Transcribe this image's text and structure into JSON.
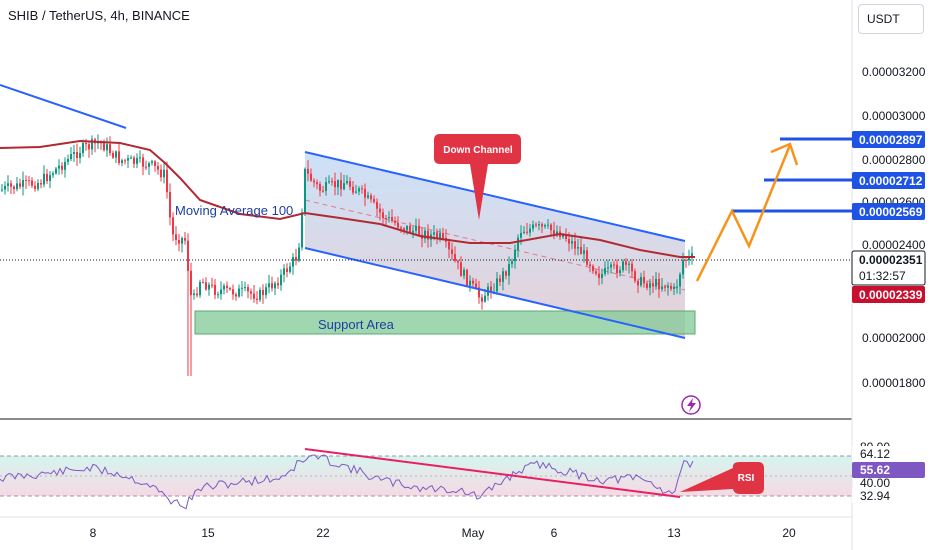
{
  "header": {
    "symbol_title": "SHIB / TetherUS, 4h, BINANCE",
    "currency_button": "USDT"
  },
  "price_axis": {
    "ticks": [
      "0.00003200",
      "0.00003000",
      "0.00002800",
      "0.00002600",
      "0.00002400",
      "0.00002000",
      "0.00001800"
    ],
    "tags": [
      {
        "text": "0.00002897",
        "bg": "#1e53e5",
        "fg": "#ffffff"
      },
      {
        "text": "0.00002712",
        "bg": "#1e53e5",
        "fg": "#ffffff"
      },
      {
        "text": "0.00002569",
        "bg": "#1e53e5",
        "fg": "#ffffff"
      },
      {
        "text": "0.00002351",
        "bg": "#ffffff",
        "fg": "#131722"
      },
      {
        "text": "01:32:57",
        "bg": "#ffffff",
        "fg": "#131722"
      },
      {
        "text": "0.00002339",
        "bg": "#c8102e",
        "fg": "#ffffff"
      }
    ]
  },
  "rsi_axis": {
    "ticks": [
      "80.00",
      "64.12",
      "40.00",
      "32.94"
    ],
    "value_tag": {
      "text": "55.62",
      "bg": "#7e57c2",
      "fg": "#ffffff"
    }
  },
  "time_axis": {
    "labels": [
      "8",
      "15",
      "22",
      "May",
      "6",
      "13",
      "20"
    ]
  },
  "annotations": {
    "moving_average": "Moving Average 100",
    "support_area": "Support Area",
    "down_channel": "Down Channel",
    "rsi_callout": "RSI"
  },
  "colors": {
    "bull": "#089981",
    "bear": "#f23645",
    "moving_average": "#b22833",
    "trend_line": "#2962ff",
    "projection": "#f7931a",
    "rsi_line": "#7e57c2",
    "rsi_trend": "#e91e63",
    "support_fill": "#81c995",
    "callout": "#e03445"
  },
  "icons": {
    "alert": "lightning-bolt-icon"
  }
}
